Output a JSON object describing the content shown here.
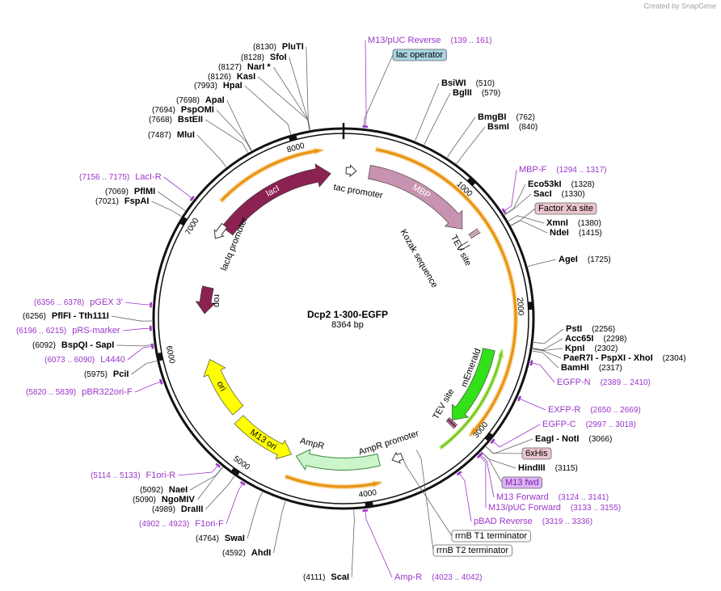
{
  "credit": "Created by SnapGene",
  "map": {
    "title": "Dcp2 1-300-EGFP",
    "length": "8364 bp",
    "ticks": [
      1000,
      2000,
      3000,
      4000,
      5000,
      6000,
      7000,
      8000
    ]
  },
  "primer_color": "#9b35c9",
  "enzymes": [
    {
      "name": "PluTI",
      "site": "(8130)"
    },
    {
      "name": "SfoI",
      "site": "(8128)"
    },
    {
      "name": "NarI *",
      "site": "(8127)"
    },
    {
      "name": "KasI",
      "site": "(8126)"
    },
    {
      "name": "HpaI",
      "site": "(7993)"
    },
    {
      "name": "ApaI",
      "site": "(7698)"
    },
    {
      "name": "PspOMI",
      "site": "(7694)"
    },
    {
      "name": "BstEII",
      "site": "(7668)"
    },
    {
      "name": "MluI",
      "site": "(7487)"
    },
    {
      "name": "PflMI",
      "site": "(7069)"
    },
    {
      "name": "FspAI",
      "site": "(7021)"
    },
    {
      "name": "PflFI - Tth111I",
      "site": "(6256)"
    },
    {
      "name": "BspQI - SapI",
      "site": "(6092)"
    },
    {
      "name": "PciI",
      "site": "(5975)"
    },
    {
      "name": "NaeI",
      "site": "(5092)"
    },
    {
      "name": "NgoMIV",
      "site": "(5090)"
    },
    {
      "name": "DraIII",
      "site": "(4989)"
    },
    {
      "name": "SwaI",
      "site": "(4764)"
    },
    {
      "name": "AhdI",
      "site": "(4592)"
    },
    {
      "name": "ScaI",
      "site": "(4111)"
    },
    {
      "name": "BsiWI",
      "site": "(510)"
    },
    {
      "name": "BglII",
      "site": "(579)"
    },
    {
      "name": "BmgBI",
      "site": "(762)"
    },
    {
      "name": "BsmI",
      "site": "(840)"
    },
    {
      "name": "Eco53kI",
      "site": "(1328)"
    },
    {
      "name": "SacI",
      "site": "(1330)"
    },
    {
      "name": "XmnI",
      "site": "(1380)"
    },
    {
      "name": "NdeI",
      "site": "(1415)"
    },
    {
      "name": "AgeI",
      "site": "(1725)"
    },
    {
      "name": "PstI",
      "site": "(2256)"
    },
    {
      "name": "Acc65I",
      "site": "(2298)"
    },
    {
      "name": "KpnI",
      "site": "(2302)"
    },
    {
      "name": "PaeR7I - PspXI - XhoI",
      "site": "(2304)"
    },
    {
      "name": "BamHI",
      "site": "(2317)"
    },
    {
      "name": "EagI - NotI",
      "site": "(3066)"
    },
    {
      "name": "HindIII",
      "site": "(3115)"
    }
  ],
  "primers": [
    {
      "name": "M13/pUC Reverse",
      "site": "(139 .. 161)"
    },
    {
      "name": "MBP-F",
      "site": "(1294 .. 1317)"
    },
    {
      "name": "EGFP-N",
      "site": "(2389 .. 2410)"
    },
    {
      "name": "EXFP-R",
      "site": "(2650 .. 2669)"
    },
    {
      "name": "EGFP-C",
      "site": "(2997 .. 3018)"
    },
    {
      "name": "M13 Forward",
      "site": "(3124 .. 3141)"
    },
    {
      "name": "M13/pUC Forward",
      "site": "(3133 .. 3155)"
    },
    {
      "name": "pBAD Reverse",
      "site": "(3319 .. 3336)"
    },
    {
      "name": "Amp-R",
      "site": "(4023 .. 4042)"
    },
    {
      "name": "F1ori-F",
      "site": "(4902 .. 4923)"
    },
    {
      "name": "F1ori-R",
      "site": "(5114 .. 5133)"
    },
    {
      "name": "pBR322ori-F",
      "site": "(5820 .. 5839)"
    },
    {
      "name": "L4440",
      "site": "(6073 .. 6090)"
    },
    {
      "name": "pRS-marker",
      "site": "(6196 .. 6215)"
    },
    {
      "name": "pGEX 3'",
      "site": "(6356 .. 6378)"
    },
    {
      "name": "LacI-R",
      "site": "(7156 .. 7175)"
    }
  ],
  "boxed_features": [
    {
      "name": "lac operator",
      "fill": "#a8d4e0",
      "text_color": "#000000"
    },
    {
      "name": "Factor Xa site",
      "fill": "#ebc4cc",
      "text_color": "#000000"
    },
    {
      "name": "6xHis",
      "fill": "#ebc4cc",
      "text_color": "#000000"
    },
    {
      "name": "M13 fwd",
      "fill": "#dcb4f2",
      "text_color": "#7a1fb0"
    },
    {
      "name": "rrnB T1 terminator",
      "fill": "#ffffff",
      "text_color": "#000000"
    },
    {
      "name": "rrnB T2 terminator",
      "fill": "#ffffff",
      "text_color": "#000000"
    }
  ],
  "features": [
    {
      "name": "lacI",
      "color": "#8b2252"
    },
    {
      "name": "MBP",
      "color": "#c793b0"
    },
    {
      "name": "mEmerald",
      "color": "#33e01a"
    },
    {
      "name": "AmpR",
      "color": "#ccf5cc"
    },
    {
      "name": "ori",
      "color": "#ffff00"
    },
    {
      "name": "M13 ori",
      "color": "#ffff00"
    },
    {
      "name": "rop",
      "color": "#8b2252"
    },
    {
      "name": "lacIq promoter",
      "color": "#ffffff"
    },
    {
      "name": "tac promoter",
      "color": "#ffffff"
    },
    {
      "name": "AmpR promoter",
      "color": "#ffffff"
    },
    {
      "name": "Kozak sequence",
      "color": "#ffffff"
    },
    {
      "name": "TEV site",
      "color": "#c793b0"
    },
    {
      "name": "TEV site",
      "color": "#8b2252"
    }
  ]
}
